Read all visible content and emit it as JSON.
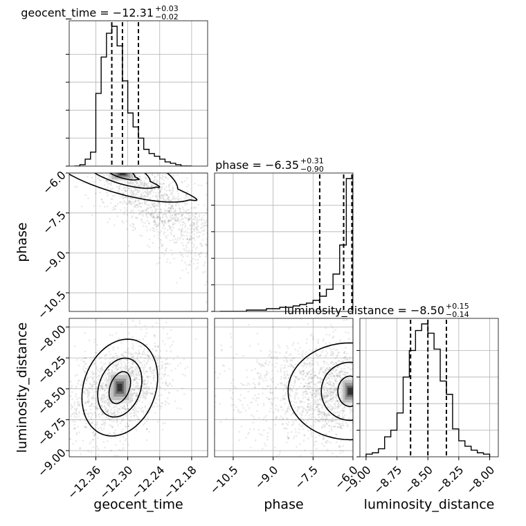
{
  "chart_data": {
    "type": "corner",
    "parameters": [
      "geocent_time",
      "phase",
      "luminosity_distance"
    ],
    "axis_labels": [
      "geocent_time",
      "phase",
      "luminosity_distance"
    ],
    "grid": true,
    "colors": {
      "line": "#000000",
      "grid": "#b0b0b0",
      "points": "#555555"
    },
    "ranges": {
      "geocent_time": [
        -12.41,
        -12.15
      ],
      "phase": [
        -11.2,
        -6.0
      ],
      "luminosity_distance": [
        -9.05,
        -7.93
      ]
    },
    "ticks": {
      "geocent_time": [
        -12.36,
        -12.3,
        -12.24,
        -12.18
      ],
      "phase": [
        -10.5,
        -9.0,
        -7.5,
        -6.0
      ],
      "luminosity_distance": [
        -9.0,
        -8.75,
        -8.5,
        -8.25,
        -8.0
      ]
    },
    "tick_labels": {
      "geocent_time": [
        "−12.36",
        "−12.30",
        "−12.24",
        "−12.18"
      ],
      "phase": [
        "−10.5",
        "−9.0",
        "−7.5",
        "−6.0"
      ],
      "luminosity_distance": [
        "−9.00",
        "−8.75",
        "−8.50",
        "−8.25",
        "−8.00"
      ]
    },
    "phase_y_tick_labels": [
      "−6.0",
      "−7.5",
      "−9.0",
      "−10.5"
    ],
    "lumdist_y_tick_labels": [
      "−8.00",
      "−8.25",
      "−8.50",
      "−8.75",
      "−9.00"
    ],
    "titles": [
      {
        "param": "geocent_time",
        "text": "geocent_time = −12.31",
        "sup": "+0.03",
        "sub": "−0.02"
      },
      {
        "param": "phase",
        "text": "phase = −6.35",
        "sup": "+0.31",
        "sub": "−0.90"
      },
      {
        "param": "luminosity_distance",
        "text": "luminosity_distance = −8.50",
        "sup": "+0.15",
        "sub": "−0.14"
      }
    ],
    "histograms": {
      "geocent_time": {
        "edges": [
          -12.4,
          -12.39,
          -12.38,
          -12.37,
          -12.36,
          -12.35,
          -12.34,
          -12.33,
          -12.32,
          -12.31,
          -12.3,
          -12.29,
          -12.28,
          -12.27,
          -12.26,
          -12.25,
          -12.24,
          -12.23,
          -12.22,
          -12.21,
          -12.2,
          -12.19,
          -12.18
        ],
        "counts": [
          0.0,
          0.01,
          0.05,
          0.1,
          0.52,
          0.78,
          0.95,
          1.0,
          0.86,
          0.61,
          0.38,
          0.28,
          0.2,
          0.12,
          0.09,
          0.07,
          0.05,
          0.03,
          0.02,
          0.01,
          0.0,
          0.0
        ],
        "quantiles": [
          -12.33,
          -12.31,
          -12.28
        ]
      },
      "phase": {
        "edges": [
          -11.0,
          -10.75,
          -10.5,
          -10.25,
          -10.0,
          -9.75,
          -9.5,
          -9.25,
          -9.0,
          -8.75,
          -8.5,
          -8.25,
          -8.0,
          -7.75,
          -7.5,
          -7.25,
          -7.0,
          -6.75,
          -6.5,
          -6.25,
          -6.0
        ],
        "counts": [
          0.0,
          0.0,
          0.0,
          0.0,
          0.01,
          0.01,
          0.01,
          0.02,
          0.02,
          0.03,
          0.03,
          0.04,
          0.05,
          0.06,
          0.08,
          0.11,
          0.16,
          0.27,
          0.48,
          0.96
        ],
        "quantiles": [
          -7.25,
          -6.35,
          -6.04
        ]
      },
      "luminosity_distance": {
        "edges": [
          -9.0,
          -8.95,
          -8.9,
          -8.85,
          -8.8,
          -8.75,
          -8.7,
          -8.65,
          -8.6,
          -8.55,
          -8.5,
          -8.45,
          -8.4,
          -8.35,
          -8.3,
          -8.25,
          -8.2,
          -8.15,
          -8.1,
          -8.05,
          -8.0
        ],
        "counts": [
          0.02,
          0.03,
          0.06,
          0.15,
          0.2,
          0.33,
          0.6,
          0.8,
          0.95,
          1.0,
          0.93,
          0.81,
          0.57,
          0.47,
          0.21,
          0.12,
          0.08,
          0.05,
          0.03,
          0.02
        ],
        "quantiles": [
          -8.64,
          -8.5,
          -8.35
        ]
      }
    },
    "density_peaks": [
      {
        "x_param": "geocent_time",
        "y_param": "phase",
        "x": -12.31,
        "y": -6.0
      },
      {
        "x_param": "geocent_time",
        "y_param": "luminosity_distance",
        "x": -12.315,
        "y": -8.49
      },
      {
        "x_param": "phase",
        "y_param": "luminosity_distance",
        "x": -6.1,
        "y": -8.52
      }
    ]
  }
}
